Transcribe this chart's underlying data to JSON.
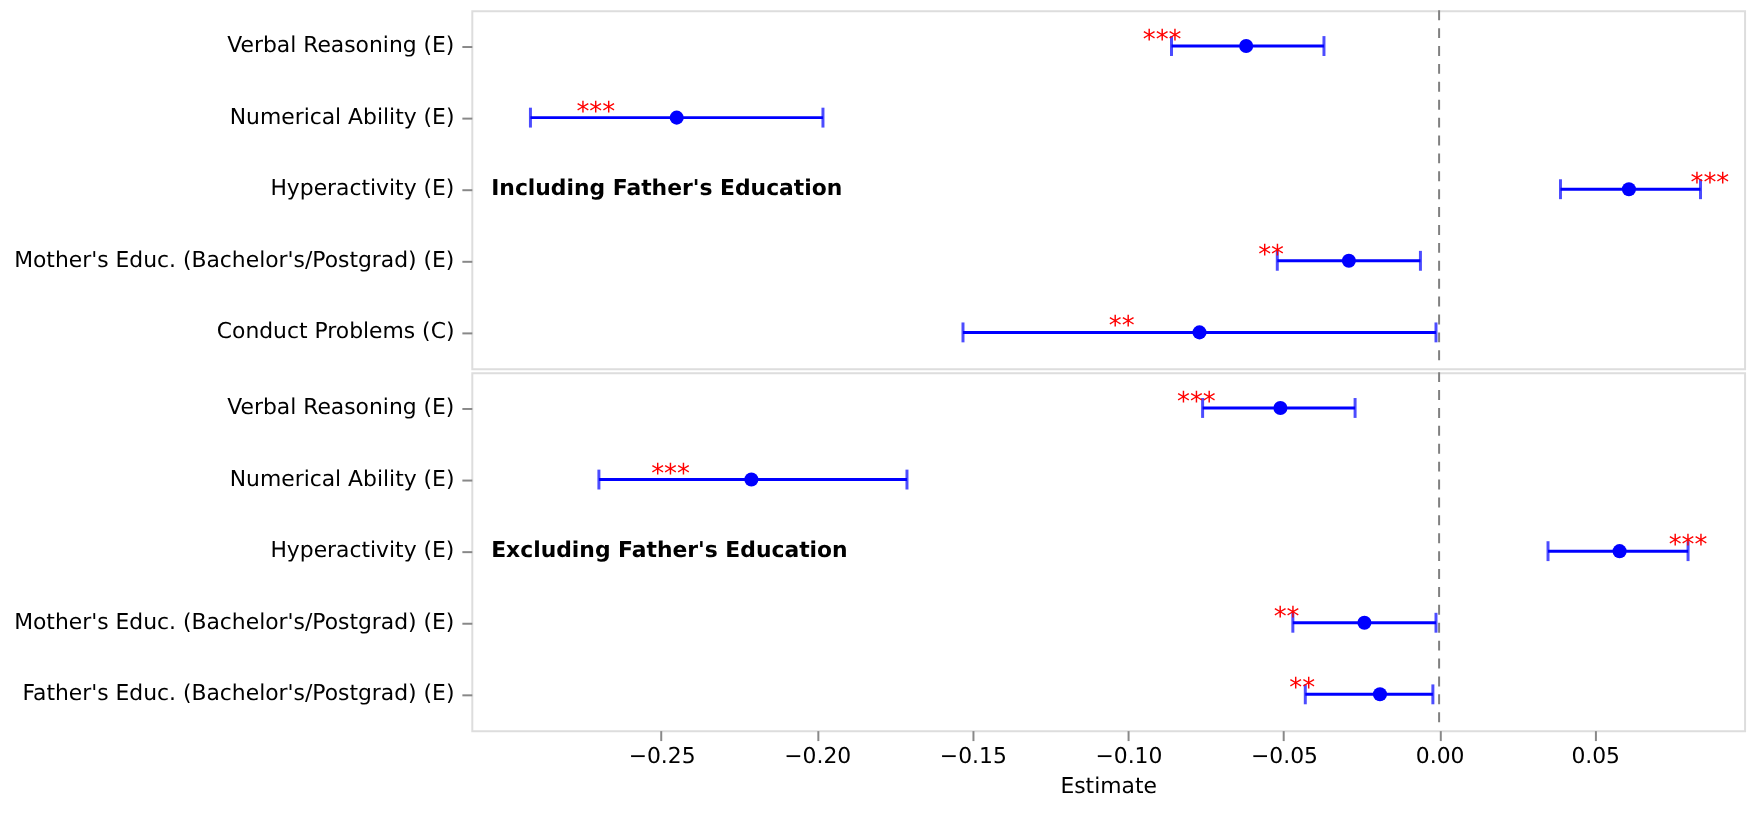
{
  "chart_data": [
    {
      "type": "scatter",
      "orientation": "horizontal",
      "marker": "circle",
      "grid": false,
      "tick_labels": "y",
      "categories": [
        "Verbal Reasoning (E)",
        "Numerical Ability (E)",
        "Hyperactivity (E)",
        "Mother's Educ. (Bachelor's/Postgrad) (E)",
        "Conduct Problems (C)"
      ],
      "series": [
        {
          "color": "#0000ff",
          "values": [
            -0.062,
            -0.245,
            0.061,
            -0.029,
            -0.077
          ],
          "errors": [
            [
              -0.086,
              -0.037
            ],
            [
              -0.292,
              -0.198
            ],
            [
              0.039,
              0.084
            ],
            [
              -0.052,
              -0.006
            ],
            [
              -0.153,
              -0.001
            ]
          ]
        }
      ],
      "xlim": [
        -0.311,
        0.098
      ],
      "ref_lines": [
        {
          "axis": "x",
          "value": 0,
          "color": "#808080",
          "line_style": "dashed"
        }
      ],
      "annotations": [
        "Including Father's Education",
        {
          "text": "***",
          "x": -0.089,
          "y": "Verbal Reasoning (E)"
        },
        {
          "text": "***",
          "x": -0.271,
          "y": "Numerical Ability (E)"
        },
        {
          "text": "***",
          "x": 0.087,
          "y": "Hyperactivity (E)"
        },
        {
          "text": "**",
          "x": -0.054,
          "y": "Mother's Educ. (Bachelor's/Postgrad) (E)"
        },
        {
          "text": "**",
          "x": -0.102,
          "y": "Conduct Problems (C)"
        }
      ]
    },
    {
      "type": "scatter",
      "orientation": "horizontal",
      "marker": "circle",
      "grid": false,
      "xlabel": "Estimate",
      "categories": [
        "Verbal Reasoning (E)",
        "Numerical Ability (E)",
        "Hyperactivity (E)",
        "Mother's Educ. (Bachelor's/Postgrad) (E)",
        "Father's Educ. (Bachelor's/Postgrad) (E)"
      ],
      "series": [
        {
          "color": "#0000ff",
          "values": [
            -0.051,
            -0.221,
            0.058,
            -0.024,
            -0.019
          ],
          "errors": [
            [
              -0.076,
              -0.027
            ],
            [
              -0.27,
              -0.171
            ],
            [
              0.035,
              0.08
            ],
            [
              -0.047,
              -0.001
            ],
            [
              -0.043,
              -0.002
            ]
          ]
        }
      ],
      "xlim": [
        -0.311,
        0.098
      ],
      "xticks": [
        {
          "value": -0.25,
          "label": "−0.25"
        },
        {
          "value": -0.2,
          "label": "−0.20"
        },
        {
          "value": -0.15,
          "label": "−0.15"
        },
        {
          "value": -0.1,
          "label": "−0.10"
        },
        {
          "value": -0.05,
          "label": "−0.05"
        },
        {
          "value": 0,
          "label": "0.00"
        },
        {
          "value": 0.05,
          "label": "0.05"
        }
      ],
      "ref_lines": [
        {
          "axis": "x",
          "value": 0,
          "color": "#808080",
          "line_style": "dashed"
        }
      ],
      "annotations": [
        "Excluding Father's Education",
        {
          "text": "***",
          "x": -0.078,
          "y": "Verbal Reasoning (E)"
        },
        {
          "text": "***",
          "x": -0.247,
          "y": "Numerical Ability (E)"
        },
        {
          "text": "***",
          "x": 0.08,
          "y": "Hyperactivity (E)"
        },
        {
          "text": "**",
          "x": -0.049,
          "y": "Mother's Educ. (Bachelor's/Postgrad) (E)"
        },
        {
          "text": "**",
          "x": -0.044,
          "y": "Father's Educ. (Bachelor's/Postgrad) (E)"
        }
      ]
    }
  ]
}
